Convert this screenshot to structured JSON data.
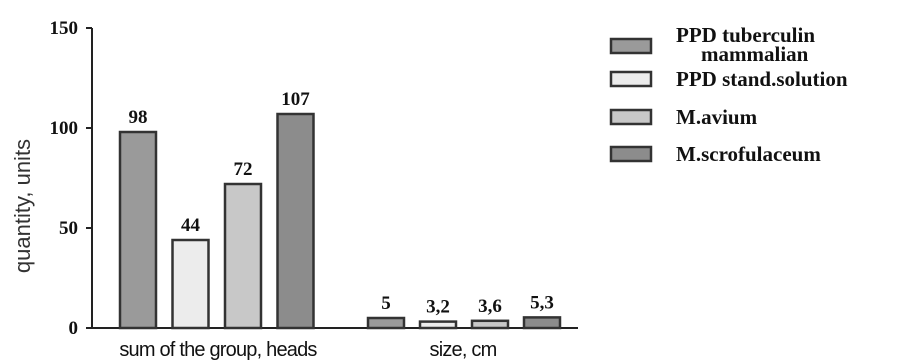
{
  "chart_data": {
    "type": "bar",
    "categories": [
      "sum of the group, heads",
      "size, cm"
    ],
    "ylabel": "quantity, units",
    "ylim": [
      0,
      150
    ],
    "yticks": [
      "0",
      "50",
      "100",
      "150"
    ],
    "series": [
      {
        "name": "PPD tuberculin mammalian",
        "legend_lines": [
          "PPD tuberculin",
          "mammalian"
        ],
        "values": [
          98,
          5
        ],
        "labels": [
          "98",
          "5"
        ],
        "color": "#9a9a9a"
      },
      {
        "name": "PPD stand.solution",
        "values": [
          44,
          3.2
        ],
        "labels": [
          "44",
          "3,2"
        ],
        "color": "#ececec"
      },
      {
        "name": "M.avium",
        "values": [
          72,
          3.6
        ],
        "labels": [
          "72",
          "3,6"
        ],
        "color": "#c8c8c8"
      },
      {
        "name": "M.scrofulaceum",
        "values": [
          107,
          5.3
        ],
        "labels": [
          "107",
          "5,3"
        ],
        "color": "#8c8c8c"
      }
    ],
    "grid": false,
    "legend": "right"
  }
}
